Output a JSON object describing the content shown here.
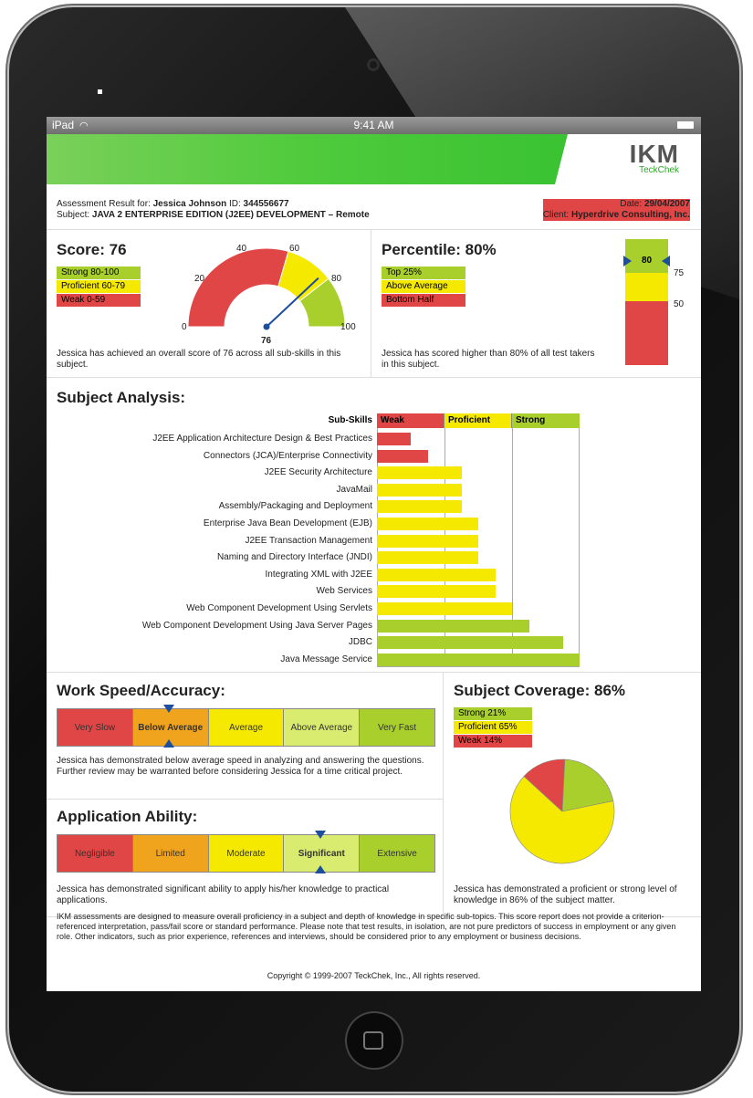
{
  "status_bar": {
    "device": "iPad",
    "time": "9:41 AM"
  },
  "logo": {
    "main": "IKM",
    "sub": "TeckChek"
  },
  "header": {
    "result_for_label": "Assessment Result for:",
    "name": "Jessica Johnson",
    "id_label": "ID:",
    "id": "344556677",
    "subject_label": "Subject:",
    "subject": "JAVA 2 ENTERPRISE EDITION (J2EE) DEVELOPMENT – Remote",
    "date_label": "Date:",
    "date": "29/04/2007",
    "client_label": "Client:",
    "client": "Hyperdrive Consulting, Inc."
  },
  "score": {
    "title": "Score: 76",
    "value": 76,
    "legend": [
      "Strong 80-100",
      "Proficient 60-79",
      "Weak 0-59"
    ],
    "gauge_ticks": [
      "0",
      "20",
      "40",
      "60",
      "80",
      "100"
    ],
    "gauge_value_label": "76",
    "note": "Jessica has achieved an overall score of 76 across all sub-skills in this subject."
  },
  "percentile": {
    "title": "Percentile: 80%",
    "value": 80,
    "legend": [
      "Top 25%",
      "Above Average",
      "Bottom Half"
    ],
    "marker_label": "80",
    "ticks": [
      "75",
      "50"
    ],
    "note": "Jessica has scored higher than 80% of all test takers in this subject."
  },
  "subject_analysis": {
    "title": "Subject Analysis:",
    "header": "Sub-Skills",
    "zones": [
      "Weak",
      "Proficient",
      "Strong"
    ],
    "skills": [
      {
        "label": "J2EE Application Architecture Design & Best Practices",
        "score": 20,
        "level": "weak"
      },
      {
        "label": "Connectors (JCA)/Enterprise Connectivity",
        "score": 30,
        "level": "weak"
      },
      {
        "label": "J2EE Security Architecture",
        "score": 50,
        "level": "proficient"
      },
      {
        "label": "JavaMail",
        "score": 50,
        "level": "proficient"
      },
      {
        "label": "Assembly/Packaging and Deployment",
        "score": 50,
        "level": "proficient"
      },
      {
        "label": "Enterprise Java Bean Development (EJB)",
        "score": 60,
        "level": "proficient"
      },
      {
        "label": "J2EE Transaction Management",
        "score": 60,
        "level": "proficient"
      },
      {
        "label": "Naming and Directory Interface (JNDI)",
        "score": 60,
        "level": "proficient"
      },
      {
        "label": "Integrating XML with J2EE",
        "score": 70,
        "level": "proficient"
      },
      {
        "label": "Web Services",
        "score": 70,
        "level": "proficient"
      },
      {
        "label": "Web Component Development Using Servlets",
        "score": 80,
        "level": "proficient"
      },
      {
        "label": "Web Component Development Using Java Server Pages",
        "score": 90,
        "level": "strong"
      },
      {
        "label": "JDBC",
        "score": 110,
        "level": "strong"
      },
      {
        "label": "Java Message Service",
        "score": 120,
        "level": "strong"
      }
    ]
  },
  "work_speed": {
    "title": "Work Speed/Accuracy:",
    "levels": [
      "Very Slow",
      "Below Average",
      "Average",
      "Above Average",
      "Very Fast"
    ],
    "selected": "Below Average",
    "note": "Jessica has demonstrated below average speed in analyzing and answering the questions. Further review may be warranted before considering Jessica for a time critical project."
  },
  "application": {
    "title": "Application Ability:",
    "levels": [
      "Negligible",
      "Limited",
      "Moderate",
      "Significant",
      "Extensive"
    ],
    "selected": "Significant",
    "note": "Jessica has demonstrated significant ability to apply his/her knowledge to practical applications."
  },
  "coverage": {
    "title": "Subject Coverage: 86%",
    "legend": [
      "Strong 21%",
      "Proficient 65%",
      "Weak 14%"
    ],
    "slices": [
      {
        "name": "Strong",
        "value": 21,
        "color": "#a8cf2c"
      },
      {
        "name": "Proficient",
        "value": 65,
        "color": "#f5e900"
      },
      {
        "name": "Weak",
        "value": 14,
        "color": "#e04646"
      }
    ],
    "note": "Jessica has demonstrated a proficient or strong level of knowledge in 86% of the subject matter."
  },
  "footer": {
    "disclaimer": "IKM assessments are designed to measure overall proficiency in a subject and depth of knowledge in specific sub-topics. This score report does not provide a criterion-referenced interpretation, pass/fail score or standard performance. Please note that test results, in isolation, are not pure predictors of success in employment or any given role. Other indicators, such as prior experience, references and interviews, should be considered prior to any employment or business decisions.",
    "copyright": "Copyright © 1999-2007 TeckChek, Inc., All rights reserved."
  },
  "colors": {
    "strong": "#a8cf2c",
    "proficient": "#f5e900",
    "weak": "#e04646",
    "marker": "#1d4f9c"
  }
}
